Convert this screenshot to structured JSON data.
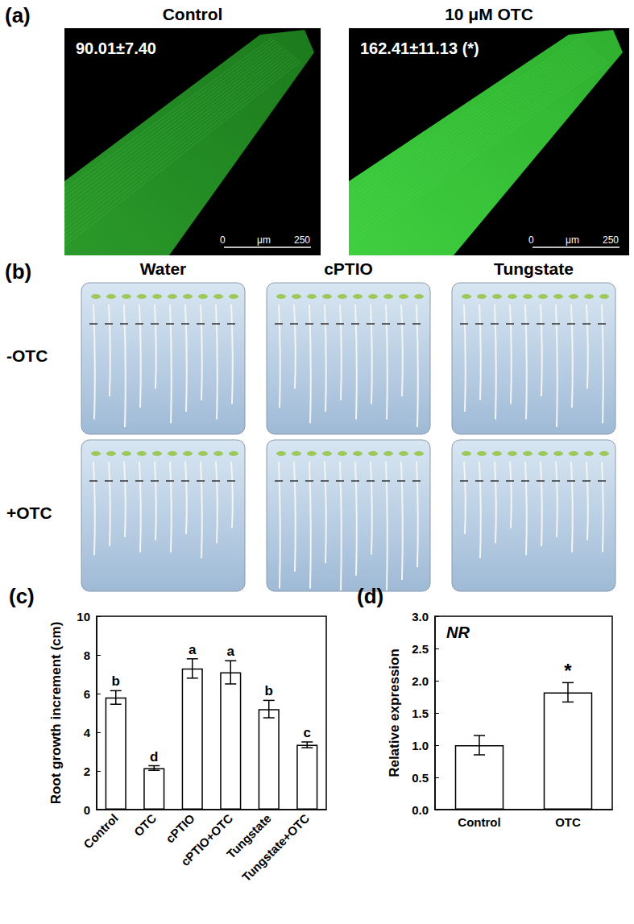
{
  "panel_a": {
    "label": "(a)",
    "images": [
      {
        "title": "Control",
        "annotation": "90.01±7.40",
        "scale_bar": [
          "0",
          "μm",
          "250"
        ]
      },
      {
        "title": "10 μM OTC",
        "annotation": "162.41±11.13 (*)",
        "scale_bar": [
          "0",
          "μm",
          "250"
        ]
      }
    ]
  },
  "panel_b": {
    "label": "(b)",
    "columns": [
      "Water",
      "cPTIO",
      "Tungstate"
    ],
    "rows": [
      "-OTC",
      "+OTC"
    ]
  },
  "chart_data": [
    {
      "type": "bar",
      "title": "(c)",
      "y_label": "Root growth increment (cm)",
      "categories": [
        "Control",
        "OTC",
        "cPTIO",
        "cPTIO+OTC",
        "Tungstate",
        "Tungstate+OTC"
      ],
      "values": [
        5.8,
        2.15,
        7.3,
        7.1,
        5.2,
        3.35
      ],
      "errors": [
        0.35,
        0.12,
        0.5,
        0.6,
        0.45,
        0.15
      ],
      "significance": [
        "b",
        "d",
        "a",
        "a",
        "b",
        "c"
      ],
      "color": "#ffffff",
      "ylim": [
        0,
        10
      ],
      "yticks": [
        0,
        2,
        4,
        6,
        8,
        10
      ],
      "grid": false
    },
    {
      "type": "bar",
      "title": "(d)",
      "annotations": [
        "NR"
      ],
      "y_label": "Relative expression",
      "categories": [
        "Control",
        "OTC"
      ],
      "values": [
        1.0,
        1.82
      ],
      "errors": [
        0.15,
        0.15
      ],
      "significance": [
        null,
        "*"
      ],
      "color": "#ffffff",
      "ylim": [
        0,
        3
      ],
      "yticks": [
        {
          "value": 0,
          "label": "0.0"
        },
        0.5,
        {
          "value": 1,
          "label": "1.0"
        },
        1.5,
        {
          "value": 2,
          "label": "2.0"
        },
        2.5,
        {
          "value": 3,
          "label": "3.0"
        }
      ],
      "grid": false
    }
  ]
}
